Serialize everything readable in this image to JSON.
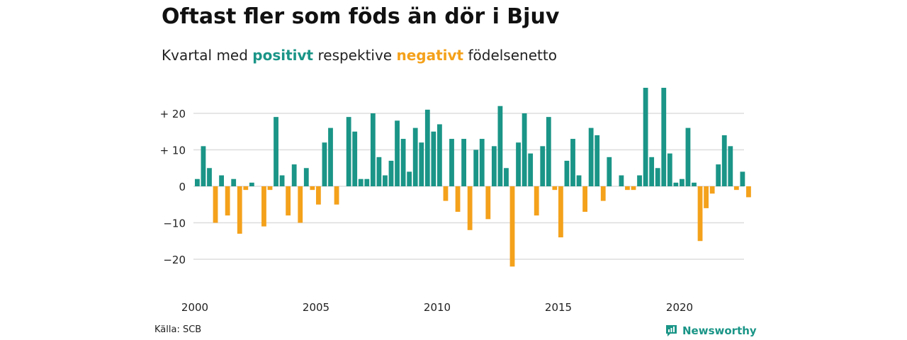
{
  "title": "Oftast fler som föds än dör i Bjuv",
  "subtitle": {
    "prefix": "Kvartal med ",
    "positive_word": "positivt",
    "middle": " respektive ",
    "negative_word": "negativt",
    "suffix": " födelsenetto"
  },
  "source": "Källa: SCB",
  "brand": "Newsworthy",
  "colors": {
    "positive": "#1a9587",
    "negative": "#f4a11b",
    "grid": "#dddddd",
    "text": "#222222"
  },
  "chart_data": {
    "type": "bar",
    "title": "Oftast fler som föds än dör i Bjuv",
    "subtitle": "Kvartal med positivt respektive negativt födelsenetto",
    "xlabel": "",
    "ylabel": "",
    "x_start": 2000,
    "periods_per_year": 4,
    "ylim": [
      -27,
      27
    ],
    "y_ticks": [
      20,
      10,
      0,
      -10,
      -20
    ],
    "y_tick_labels": [
      "+ 20",
      "+ 10",
      "0",
      "−10",
      "−20"
    ],
    "x_ticks": [
      2000,
      2005,
      2010,
      2015,
      2020
    ],
    "x_tick_labels": [
      "2000",
      "2005",
      "2010",
      "2015",
      "2020"
    ],
    "grid": true,
    "values": [
      2,
      11,
      5,
      -10,
      3,
      -8,
      2,
      -13,
      -1,
      1,
      0,
      -11,
      -1,
      19,
      3,
      -8,
      6,
      -10,
      5,
      -1,
      -5,
      12,
      16,
      -5,
      0,
      19,
      15,
      2,
      2,
      20,
      8,
      3,
      7,
      18,
      13,
      4,
      16,
      12,
      21,
      15,
      17,
      -4,
      13,
      -7,
      13,
      -12,
      10,
      13,
      -9,
      11,
      22,
      5,
      -22,
      12,
      20,
      9,
      -8,
      11,
      19,
      -1,
      -14,
      7,
      13,
      3,
      -7,
      16,
      14,
      -4,
      8,
      0,
      3,
      -1,
      -1,
      3,
      27,
      8,
      5,
      27,
      9,
      1,
      2,
      16,
      1,
      -15,
      -6,
      -2,
      6,
      14,
      11,
      -1,
      4,
      -3
    ]
  }
}
